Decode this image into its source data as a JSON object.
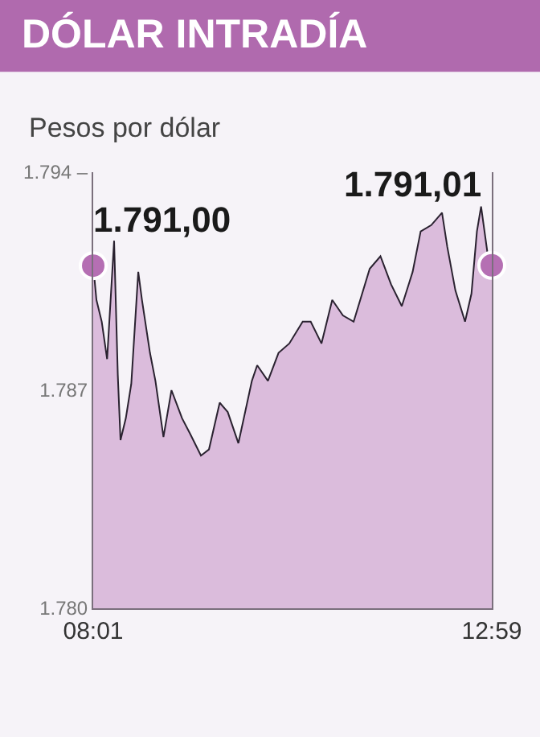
{
  "chart_data": {
    "type": "area",
    "title": "DÓLAR INTRADÍA",
    "subtitle": "Pesos por dólar",
    "x": [
      8.017,
      8.057,
      8.123,
      8.19,
      8.277,
      8.323,
      8.357,
      8.423,
      8.491,
      8.578,
      8.624,
      8.724,
      8.792,
      8.892,
      8.992,
      9.124,
      9.225,
      9.359,
      9.459,
      9.593,
      9.693,
      9.826,
      9.994,
      10.06,
      10.194,
      10.326,
      10.46,
      10.627,
      10.727,
      10.861,
      10.995,
      11.128,
      11.262,
      11.462,
      11.596,
      11.728,
      11.862,
      11.997,
      12.097,
      12.229,
      12.363,
      12.429,
      12.53,
      12.65,
      12.73,
      12.798,
      12.85,
      12.93,
      12.983
    ],
    "series": [
      {
        "color": "#dbbcdc",
        "values": [
          1791.0,
          1789.9,
          1789.2,
          1788.0,
          1791.8,
          1787.5,
          1785.4,
          1786.1,
          1787.2,
          1790.8,
          1789.9,
          1788.2,
          1787.3,
          1785.5,
          1787.0,
          1786.1,
          1785.6,
          1784.9,
          1785.1,
          1786.6,
          1786.3,
          1785.3,
          1787.3,
          1787.8,
          1787.3,
          1788.2,
          1788.5,
          1789.2,
          1789.2,
          1788.5,
          1789.9,
          1789.4,
          1789.2,
          1790.9,
          1791.3,
          1790.4,
          1789.7,
          1790.8,
          1792.1,
          1792.3,
          1792.7,
          1791.6,
          1790.2,
          1789.2,
          1790.1,
          1792.1,
          1792.9,
          1791.4,
          1791.01
        ],
        "value_labels": [
          "1.791,00",
          null,
          null,
          null,
          null,
          null,
          null,
          null,
          null,
          null,
          null,
          null,
          null,
          null,
          null,
          null,
          null,
          null,
          null,
          null,
          null,
          null,
          null,
          null,
          null,
          null,
          null,
          null,
          null,
          null,
          null,
          null,
          null,
          null,
          null,
          null,
          null,
          null,
          null,
          null,
          null,
          null,
          null,
          null,
          null,
          null,
          null,
          null,
          "1.791,01"
        ]
      }
    ],
    "xlim": [
      8.0167,
      12.9833
    ],
    "xticks": [
      {
        "value": 8.0167,
        "label": "08:01"
      },
      {
        "value": 12.9833,
        "label": "12:59"
      }
    ],
    "ylim": [
      1780,
      1794
    ],
    "yticks": [
      {
        "value": 1780,
        "label": "1.780"
      },
      {
        "value": 1787,
        "label": "1.787"
      },
      {
        "value": 1794,
        "label": "1.794 –"
      }
    ],
    "grid": false
  }
}
